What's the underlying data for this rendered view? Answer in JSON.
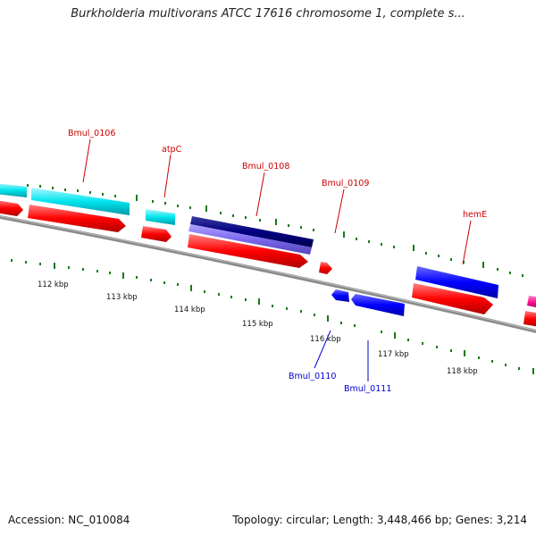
{
  "title": "Burkholderia multivorans ATCC 17616 chromosome 1, complete s...",
  "footer": {
    "accession": "Accession: NC_010084",
    "summary": "Topology: circular; Length: 3,448,466 bp; Genes: 3,214"
  },
  "colors": {
    "forward_cds": "#00e5ee",
    "reverse_cds": "#ff0000",
    "rna_dark": "#000080",
    "rna_light": "#7b68ee",
    "blue_cds": "#0000ff",
    "magenta_cds": "#ff1493",
    "backbone": "#808080",
    "tick": "#1a7a1a",
    "label_top": "#cc0000",
    "label_bottom": "#0000cc"
  },
  "scale": {
    "tick_labels": [
      "112 kbp",
      "113 kbp",
      "114 kbp",
      "115 kbp",
      "116 kbp",
      "117 kbp",
      "118 kbp"
    ]
  },
  "labels": {
    "top": [
      "Bmul_0106",
      "atpC",
      "Bmul_0108",
      "Bmul_0109",
      "hemE"
    ],
    "bottom": [
      "Bmul_0110",
      "Bmul_0111"
    ]
  }
}
